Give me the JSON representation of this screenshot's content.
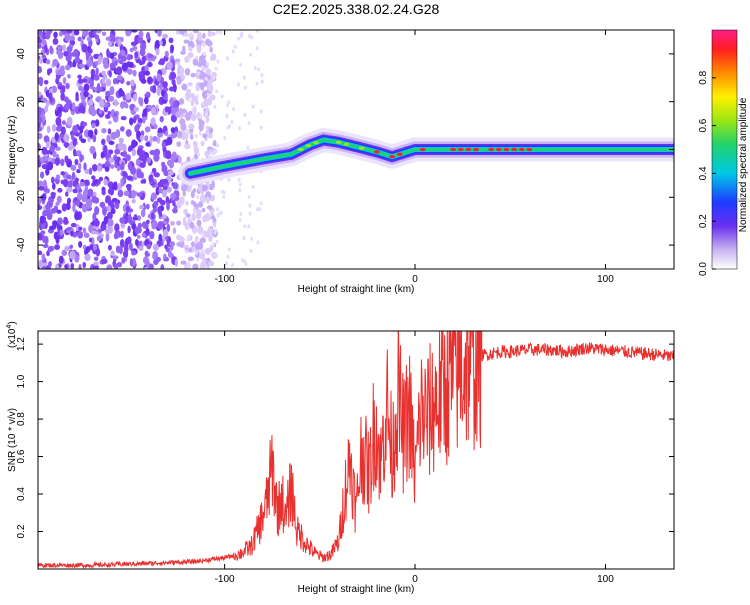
{
  "chart_data": [
    {
      "type": "heatmap",
      "title": "C2E2.2025.338.02.24.G28",
      "xlabel": "Height of straight line (km)",
      "ylabel": "Frequency (Hz)",
      "xlim": [
        -198,
        136
      ],
      "ylim": [
        -50,
        50
      ],
      "xticks": [
        -100,
        0,
        100
      ],
      "xtick_labels": [
        "-100",
        "0",
        "100"
      ],
      "yticks": [
        -40,
        -20,
        0,
        20,
        40
      ],
      "ytick_labels": [
        "-40",
        "-20",
        "0",
        "20",
        "40"
      ],
      "colorbar": {
        "label": "Normalized spectral amplitude",
        "range": [
          0,
          1
        ],
        "ticks": [
          0.0,
          0.2,
          0.4,
          0.6,
          0.8
        ],
        "tick_labels": [
          "0.0",
          "0.2",
          "0.4",
          "0.6",
          "0.8"
        ]
      },
      "ridge": {
        "x": [
          -118,
          -100,
          -80,
          -65,
          -55,
          -48,
          -40,
          -30,
          -20,
          -12,
          -8,
          0,
          20,
          60,
          100,
          136
        ],
        "freq_hz": [
          -10,
          -7,
          -4,
          -2,
          2,
          4,
          3,
          1,
          -1,
          -3,
          -2,
          0,
          0,
          0,
          0,
          0
        ]
      },
      "noise_region_x": [
        -198,
        -115
      ]
    },
    {
      "type": "line",
      "xlabel": "Height of straight line (km)",
      "ylabel": "SNR (10 * v/v)",
      "y_multiplier_label": "(x10",
      "y_multiplier_exp": "4",
      "xlim": [
        -198,
        136
      ],
      "ylim": [
        0,
        1.27
      ],
      "xticks": [
        -100,
        0,
        100
      ],
      "xtick_labels": [
        "-100",
        "0",
        "100"
      ],
      "yticks": [
        0.2,
        0.4,
        0.6,
        0.8,
        1.0,
        1.2
      ],
      "ytick_labels": [
        "0.2",
        "0.4",
        "0.6",
        "0.8",
        "1.0",
        "1.2"
      ],
      "color": "#e8302e",
      "series": [
        {
          "name": "SNR",
          "x": [
            -198,
            -170,
            -140,
            -115,
            -100,
            -92,
            -86,
            -82,
            -78,
            -75,
            -72,
            -70,
            -68,
            -65,
            -62,
            -60,
            -56,
            -52,
            -48,
            -44,
            -40,
            -37,
            -34,
            -31,
            -28,
            -24,
            -21,
            -18,
            -15,
            -12,
            -9,
            -6,
            -3,
            0,
            3,
            6,
            10,
            14,
            18,
            22,
            26,
            30,
            35,
            40,
            45,
            50,
            60,
            70,
            80,
            90,
            100,
            110,
            120,
            130,
            136
          ],
          "values": [
            0.02,
            0.02,
            0.03,
            0.04,
            0.06,
            0.08,
            0.12,
            0.22,
            0.35,
            0.55,
            0.3,
            0.4,
            0.25,
            0.45,
            0.2,
            0.18,
            0.12,
            0.08,
            0.06,
            0.08,
            0.15,
            0.4,
            0.6,
            0.3,
            0.65,
            0.5,
            0.8,
            0.55,
            0.9,
            0.6,
            0.95,
            0.7,
            0.85,
            0.5,
            0.85,
            0.8,
            0.88,
            0.95,
            1.0,
            1.05,
            1.1,
            1.12,
            1.14,
            1.15,
            1.16,
            1.16,
            1.17,
            1.17,
            1.16,
            1.18,
            1.17,
            1.16,
            1.15,
            1.14,
            1.13
          ]
        }
      ]
    }
  ]
}
